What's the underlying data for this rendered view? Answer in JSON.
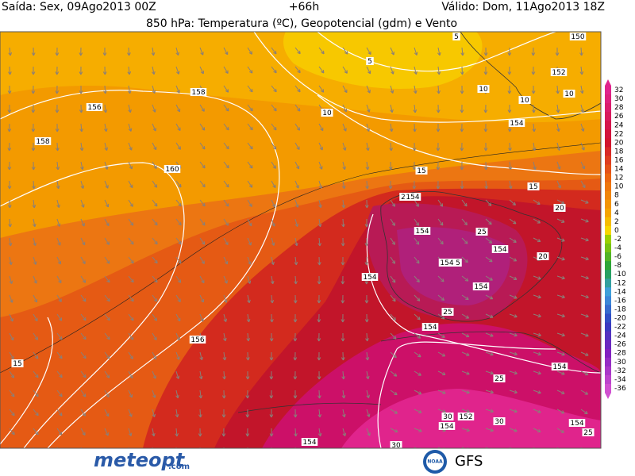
{
  "header": {
    "issued": "Saída: Sex, 09Ago2013 00Z",
    "lead": "+66h",
    "valid": "Válido: Dom, 11Ago2013 18Z",
    "title": "850 hPa: Temperatura (ºC), Geopotencial (gdm) e Vento"
  },
  "colorbar": {
    "labels": [
      "32",
      "30",
      "28",
      "26",
      "24",
      "22",
      "20",
      "18",
      "16",
      "14",
      "12",
      "10",
      "8",
      "6",
      "4",
      "2",
      "0",
      "-2",
      "-4",
      "-6",
      "-8",
      "-10",
      "-12",
      "-14",
      "-16",
      "-18",
      "-20",
      "-22",
      "-24",
      "-26",
      "-28",
      "-30",
      "-32",
      "-34",
      "-36"
    ]
  },
  "contour_labels": [
    "156",
    "158",
    "158",
    "160",
    "10",
    "5",
    "5",
    "150",
    "152",
    "10",
    "10",
    "10",
    "154",
    "15",
    "15",
    "20",
    "2",
    "154",
    "154",
    "25",
    "154",
    "20",
    "154",
    "5",
    "154",
    "154",
    "25",
    "156",
    "15",
    "154",
    "154",
    "25",
    "30",
    "152",
    "154",
    "30",
    "154",
    "154",
    "30",
    "25"
  ],
  "footer": {
    "brand": "meteopt",
    "brand_suffix": ".com",
    "agency": "NOAA",
    "model": "GFS"
  }
}
